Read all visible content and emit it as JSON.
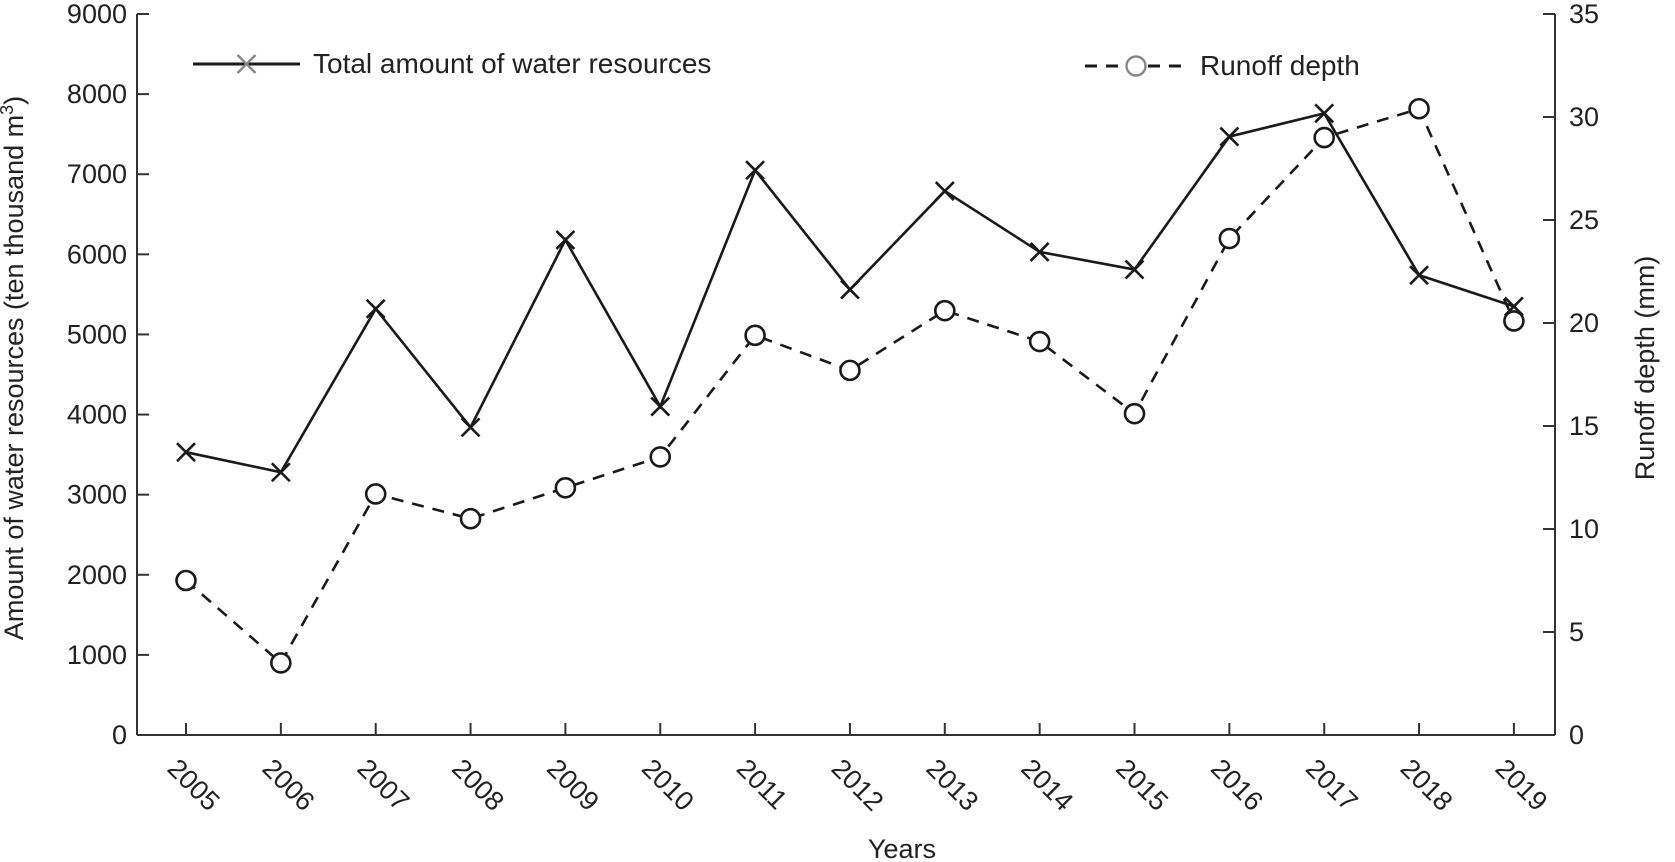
{
  "chart_data": {
    "type": "line",
    "title": "",
    "xlabel": "Years",
    "ylabel_left": "Amount of water resources (ten thousand m",
    "ylabel_left_superscript": "3",
    "ylabel_left_close": ")",
    "ylabel_right": "Runoff depth (mm)",
    "categories": [
      "2005",
      "2006",
      "2007",
      "2008",
      "2009",
      "2010",
      "2011",
      "2012",
      "2013",
      "2014",
      "2015",
      "2016",
      "2017",
      "2018",
      "2019"
    ],
    "ylim_left": [
      0,
      9000
    ],
    "yticks_left": [
      0,
      1000,
      2000,
      3000,
      4000,
      5000,
      6000,
      7000,
      8000,
      9000
    ],
    "ylim_right": [
      0,
      35
    ],
    "yticks_right": [
      0,
      5,
      10,
      15,
      20,
      25,
      30,
      35
    ],
    "series": [
      {
        "name": "Total amount of water resources",
        "axis": "left",
        "marker": "x",
        "linestyle": "solid",
        "values": [
          3530,
          3280,
          5320,
          3840,
          6180,
          4100,
          7050,
          5560,
          6790,
          6030,
          5810,
          7470,
          7760,
          5740,
          5350
        ]
      },
      {
        "name": "Runoff depth",
        "axis": "right",
        "marker": "circle",
        "linestyle": "dashed",
        "values": [
          7.5,
          3.5,
          11.7,
          10.5,
          12.0,
          13.5,
          19.4,
          17.7,
          20.6,
          19.1,
          15.6,
          24.1,
          29.0,
          30.4,
          20.1
        ]
      }
    ],
    "legend": {
      "placement": "top"
    },
    "grid": false
  },
  "colors": {
    "line": "#1a1a1a",
    "axis": "#333333",
    "marker_x": "#1a1a1a",
    "legend_marker": "#888888"
  }
}
